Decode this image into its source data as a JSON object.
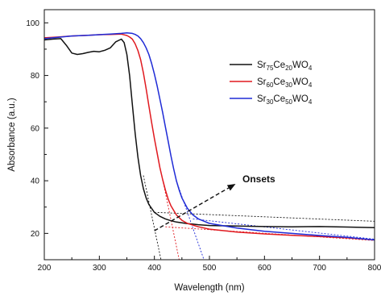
{
  "chart_data": {
    "type": "line",
    "xlabel": "Wavelength (nm)",
    "ylabel": "Absorbance (a.u.)",
    "xlim": [
      200,
      800
    ],
    "ylim": [
      10,
      105
    ],
    "xticks": [
      200,
      300,
      400,
      500,
      600,
      700,
      800
    ],
    "yticks": [
      20,
      40,
      60,
      80,
      100
    ],
    "grid": false,
    "legend_position": "top-right",
    "series": [
      {
        "name": {
          "parts": [
            [
              "Sr",
              ""
            ],
            [
              "75",
              "sub"
            ],
            [
              "Ce",
              ""
            ],
            [
              "20",
              "sub"
            ],
            [
              "WO",
              ""
            ],
            [
              "4",
              "sub"
            ]
          ]
        },
        "color": "#111111",
        "x": [
          200,
          215,
          230,
          240,
          250,
          260,
          270,
          280,
          290,
          300,
          310,
          320,
          330,
          340,
          345,
          350,
          355,
          360,
          365,
          370,
          375,
          380,
          385,
          390,
          395,
          400,
          410,
          420,
          430,
          440,
          450,
          460,
          470,
          480,
          500,
          550,
          600,
          650,
          700,
          750,
          800
        ],
        "y": [
          93.5,
          93.8,
          94.0,
          91.5,
          88.5,
          88.0,
          88.3,
          88.8,
          89.2,
          89.0,
          89.6,
          90.5,
          92.8,
          93.8,
          92.5,
          88.0,
          80.0,
          69.0,
          58.0,
          49.0,
          42.0,
          37.0,
          33.5,
          31.0,
          29.5,
          28.0,
          26.5,
          25.5,
          24.8,
          24.3,
          24.0,
          23.7,
          23.5,
          23.3,
          23.0,
          22.8,
          22.6,
          22.5,
          22.6,
          22.4,
          22.2
        ]
      },
      {
        "name": {
          "parts": [
            [
              "Sr",
              ""
            ],
            [
              "60",
              "sub"
            ],
            [
              "Ce",
              ""
            ],
            [
              "30",
              "sub"
            ],
            [
              "WO",
              ""
            ],
            [
              "4",
              "sub"
            ]
          ]
        },
        "color": "#e0191f",
        "x": [
          200,
          225,
          250,
          280,
          300,
          320,
          340,
          350,
          355,
          360,
          365,
          370,
          375,
          380,
          385,
          390,
          395,
          400,
          405,
          410,
          415,
          420,
          425,
          430,
          440,
          450,
          460,
          480,
          500,
          550,
          600,
          650,
          700,
          750,
          800
        ],
        "y": [
          94.3,
          94.6,
          95.0,
          95.3,
          95.5,
          95.6,
          95.7,
          95.2,
          94.6,
          93.8,
          92.0,
          89.5,
          86.0,
          81.0,
          75.0,
          68.5,
          62.0,
          56.0,
          50.5,
          45.0,
          40.5,
          36.5,
          33.0,
          30.5,
          27.0,
          25.0,
          23.8,
          22.5,
          21.6,
          20.5,
          19.8,
          19.3,
          18.8,
          18.3,
          17.5
        ]
      },
      {
        "name": {
          "parts": [
            [
              "Sr",
              ""
            ],
            [
              "30",
              "sub"
            ],
            [
              "Ce",
              ""
            ],
            [
              "50",
              "sub"
            ],
            [
              "WO",
              ""
            ],
            [
              "4",
              "sub"
            ]
          ]
        },
        "color": "#1f2bd6",
        "x": [
          200,
          225,
          250,
          280,
          300,
          320,
          340,
          350,
          360,
          365,
          370,
          375,
          380,
          385,
          390,
          395,
          400,
          405,
          410,
          415,
          420,
          425,
          430,
          435,
          440,
          445,
          450,
          460,
          470,
          480,
          500,
          550,
          600,
          650,
          700,
          750,
          800
        ],
        "y": [
          94.0,
          94.5,
          95.0,
          95.3,
          95.5,
          95.7,
          96.0,
          96.2,
          96.0,
          95.6,
          95.0,
          94.0,
          92.5,
          90.5,
          88.0,
          84.5,
          80.5,
          76.0,
          71.0,
          66.0,
          60.5,
          55.0,
          49.5,
          44.5,
          40.0,
          36.5,
          33.5,
          29.5,
          27.0,
          25.5,
          23.8,
          22.0,
          20.8,
          20.0,
          19.2,
          18.5,
          17.5
        ]
      }
    ],
    "onset_lines": [
      {
        "color": "#111111",
        "points": [
          [
            380,
            42
          ],
          [
            412,
            10
          ]
        ]
      },
      {
        "color": "#111111",
        "points": [
          [
            400,
            28
          ],
          [
            800,
            24.6
          ]
        ]
      },
      {
        "color": "#e0191f",
        "points": [
          [
            415,
            40.5
          ],
          [
            445,
            10
          ]
        ]
      },
      {
        "color": "#e0191f",
        "points": [
          [
            420,
            22.5
          ],
          [
            800,
            17.3
          ]
        ]
      },
      {
        "color": "#1f2bd6",
        "points": [
          [
            440,
            40
          ],
          [
            490,
            10
          ]
        ]
      },
      {
        "color": "#1f2bd6",
        "points": [
          [
            470,
            25.5
          ],
          [
            800,
            17.8
          ]
        ]
      }
    ],
    "annotation": {
      "text": "Onsets",
      "text_at": [
        560,
        40
      ],
      "arrow_from": [
        400,
        21
      ],
      "arrow_to": [
        545,
        38.5
      ]
    }
  }
}
